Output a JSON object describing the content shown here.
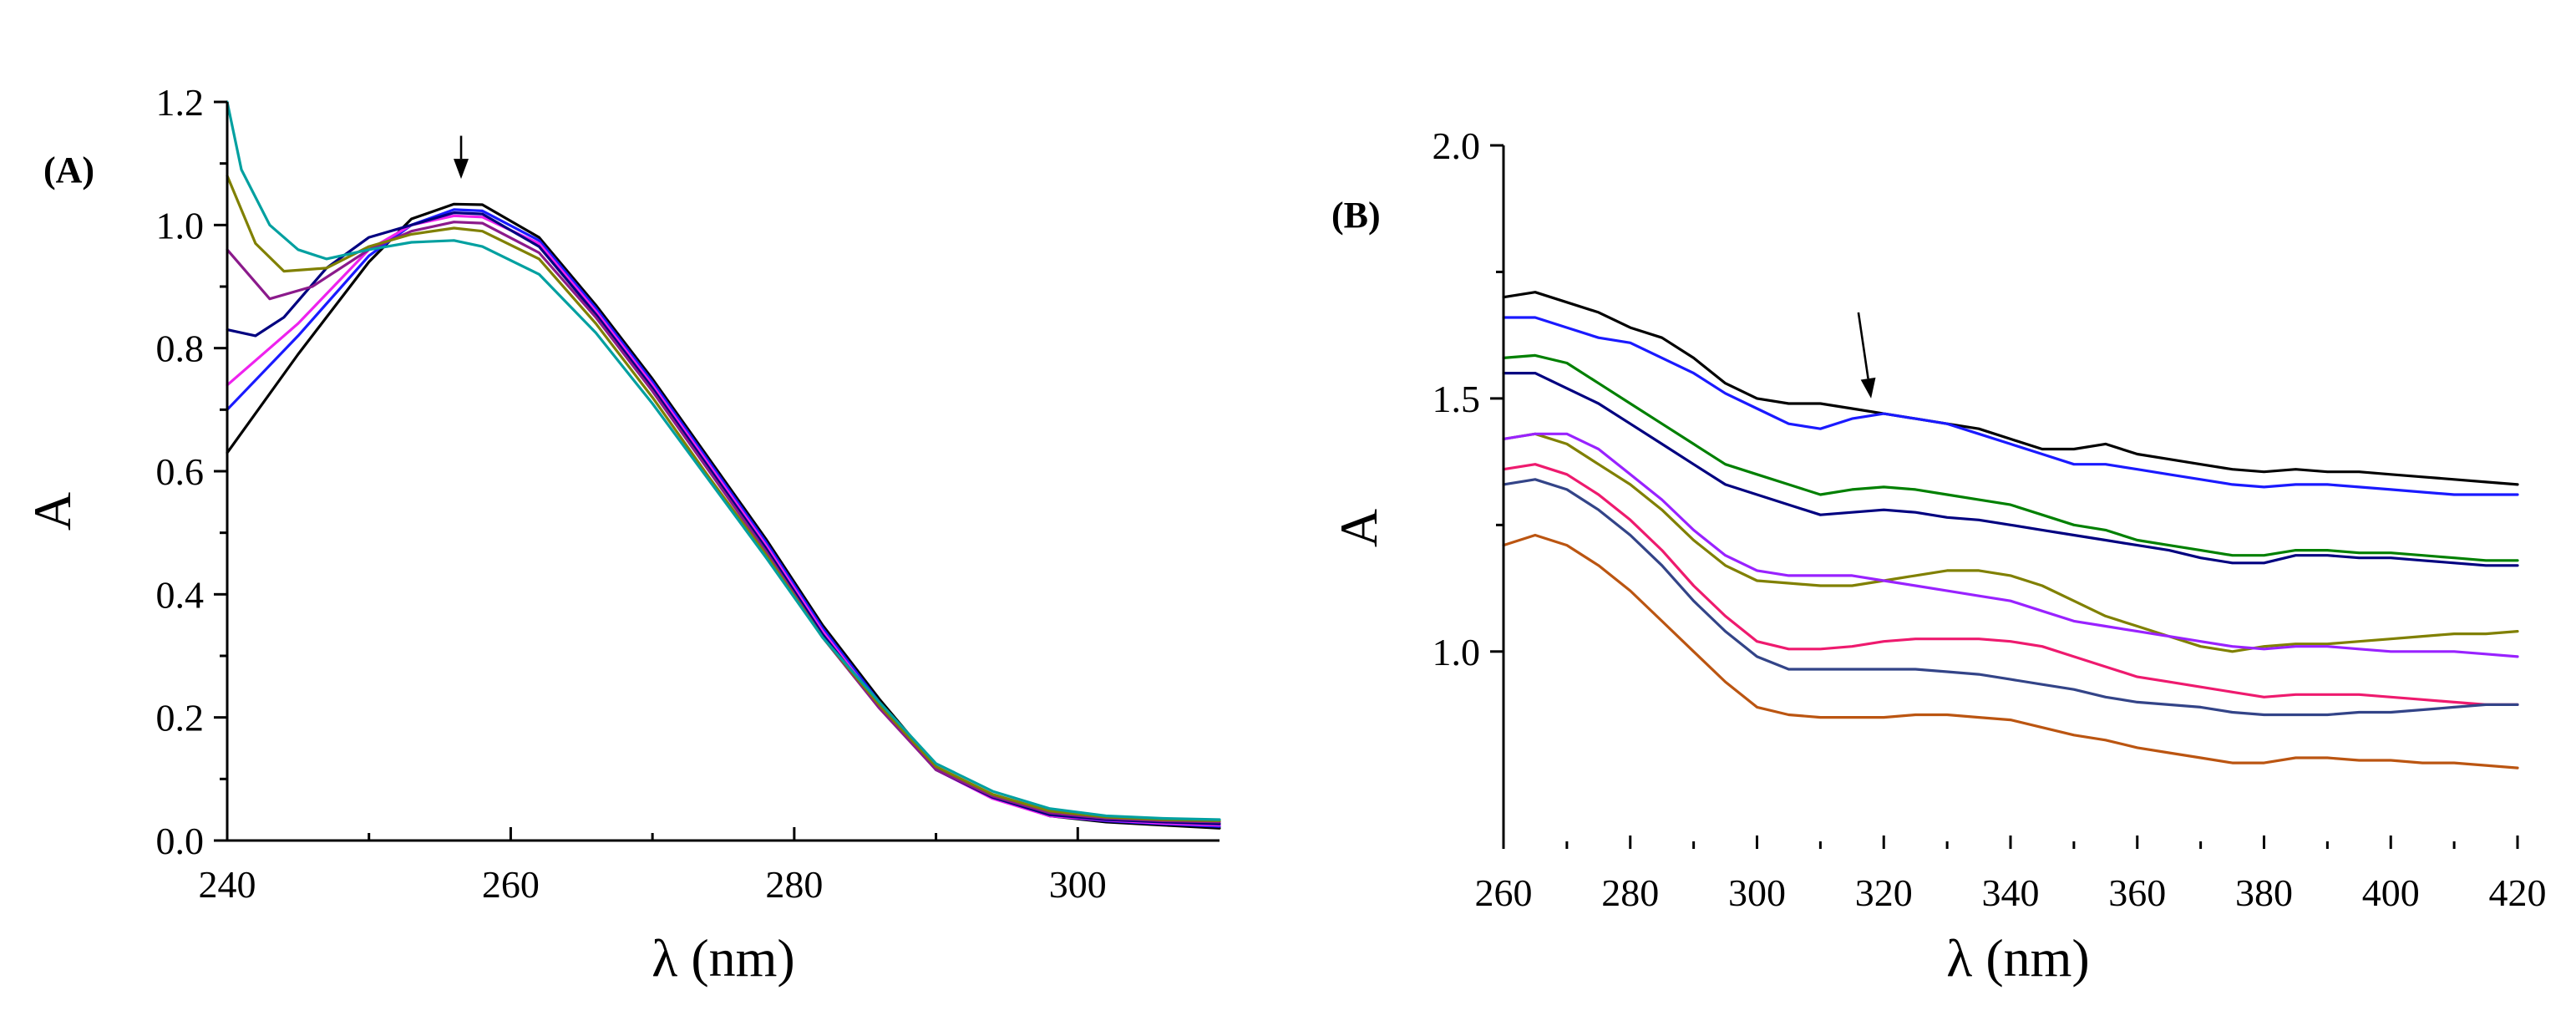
{
  "chart_data": [
    {
      "type": "line",
      "panel": "(A)",
      "xlabel": "λ (nm)",
      "ylabel": "A",
      "xlim": [
        240,
        310
      ],
      "ylim": [
        0,
        1.2
      ],
      "xticks": [
        240,
        260,
        280,
        300
      ],
      "yticks": [
        0,
        0.2,
        0.4,
        0.6,
        0.8,
        1.0,
        1.2
      ],
      "xtick_labels": [
        "240",
        "260",
        "280",
        "300"
      ],
      "ytick_labels": [
        "0.0",
        "0.2",
        "0.4",
        "0.6",
        "0.8",
        "1.0",
        "1.2"
      ],
      "arrow": {
        "x": 256.5,
        "y_from": 1.145,
        "y_to": 1.075
      },
      "series": [
        {
          "name": "s1",
          "color": "#000000",
          "x": [
            240,
            245,
            250,
            253,
            256,
            258,
            262,
            266,
            270,
            274,
            278,
            282,
            286,
            290,
            294,
            298,
            302,
            306,
            310
          ],
          "y": [
            0.63,
            0.79,
            0.94,
            1.01,
            1.034,
            1.033,
            0.98,
            0.87,
            0.75,
            0.62,
            0.49,
            0.35,
            0.23,
            0.12,
            0.07,
            0.04,
            0.03,
            0.025,
            0.02
          ]
        },
        {
          "name": "s2",
          "color": "#1a1aff",
          "x": [
            240,
            245,
            250,
            253,
            256,
            258,
            262,
            266,
            270,
            274,
            278,
            282,
            286,
            290,
            294,
            298,
            302,
            306,
            310
          ],
          "y": [
            0.7,
            0.82,
            0.95,
            1.0,
            1.025,
            1.023,
            0.975,
            0.865,
            0.745,
            0.615,
            0.485,
            0.345,
            0.225,
            0.12,
            0.07,
            0.04,
            0.032,
            0.027,
            0.023
          ]
        },
        {
          "name": "s3",
          "color": "#ee22ee",
          "x": [
            240,
            245,
            250,
            253,
            256,
            258,
            262,
            266,
            270,
            274,
            278,
            282,
            286,
            290,
            294,
            298,
            302,
            306,
            310
          ],
          "y": [
            0.74,
            0.84,
            0.96,
            1.0,
            1.015,
            1.013,
            0.97,
            0.86,
            0.74,
            0.61,
            0.48,
            0.34,
            0.22,
            0.115,
            0.068,
            0.04,
            0.033,
            0.028,
            0.025
          ]
        },
        {
          "name": "s4",
          "color": "#000080",
          "x": [
            240,
            242,
            244,
            247,
            250,
            253,
            256,
            258,
            262,
            266,
            270,
            274,
            278,
            282,
            286,
            290,
            294,
            298,
            302,
            306,
            310
          ],
          "y": [
            0.83,
            0.82,
            0.85,
            0.93,
            0.98,
            1.0,
            1.02,
            1.018,
            0.965,
            0.855,
            0.735,
            0.605,
            0.475,
            0.335,
            0.218,
            0.115,
            0.07,
            0.042,
            0.034,
            0.03,
            0.027
          ]
        },
        {
          "name": "s5",
          "color": "#8b1a8b",
          "x": [
            240,
            243,
            246,
            250,
            253,
            256,
            258,
            262,
            266,
            270,
            274,
            278,
            282,
            286,
            290,
            294,
            298,
            302,
            306,
            310
          ],
          "y": [
            0.96,
            0.88,
            0.9,
            0.96,
            0.99,
            1.005,
            1.003,
            0.955,
            0.85,
            0.73,
            0.6,
            0.47,
            0.33,
            0.215,
            0.115,
            0.072,
            0.045,
            0.036,
            0.032,
            0.03
          ]
        },
        {
          "name": "s6",
          "color": "#808000",
          "x": [
            240,
            242,
            244,
            247,
            250,
            253,
            256,
            258,
            262,
            266,
            270,
            274,
            278,
            282,
            286,
            290,
            294,
            298,
            302,
            306,
            310
          ],
          "y": [
            1.08,
            0.97,
            0.925,
            0.93,
            0.965,
            0.985,
            0.995,
            0.99,
            0.945,
            0.84,
            0.72,
            0.59,
            0.465,
            0.33,
            0.22,
            0.12,
            0.075,
            0.048,
            0.038,
            0.034,
            0.032
          ]
        },
        {
          "name": "s7",
          "color": "#00a0a0",
          "x": [
            240,
            241,
            243,
            245,
            247,
            250,
            253,
            256,
            258,
            262,
            266,
            270,
            274,
            278,
            282,
            286,
            290,
            294,
            298,
            302,
            306,
            310
          ],
          "y": [
            1.2,
            1.09,
            1.0,
            0.96,
            0.945,
            0.96,
            0.972,
            0.975,
            0.965,
            0.92,
            0.825,
            0.71,
            0.585,
            0.46,
            0.33,
            0.225,
            0.125,
            0.08,
            0.052,
            0.04,
            0.036,
            0.034
          ]
        }
      ]
    },
    {
      "type": "line",
      "panel": "(B)",
      "xlabel": "λ (nm)",
      "ylabel": "A",
      "xlim": [
        260,
        420
      ],
      "ylim": [
        0.62,
        2.0
      ],
      "xticks": [
        260,
        280,
        300,
        320,
        340,
        360,
        380,
        400,
        420
      ],
      "yticks": [
        1.0,
        1.5,
        2.0
      ],
      "xtick_labels": [
        "260",
        "280",
        "300",
        "320",
        "340",
        "360",
        "380",
        "400",
        "420"
      ],
      "ytick_labels": [
        "1.0",
        "1.5",
        "2.0"
      ],
      "arrow": {
        "x1": 316,
        "y1": 1.67,
        "x2": 318,
        "y2": 1.5
      },
      "series": [
        {
          "name": "b1",
          "color": "#000000",
          "x": [
            260,
            265,
            270,
            275,
            280,
            285,
            290,
            295,
            300,
            305,
            310,
            315,
            320,
            325,
            330,
            335,
            340,
            345,
            350,
            355,
            360,
            365,
            370,
            375,
            380,
            385,
            390,
            395,
            400,
            405,
            410,
            415,
            420
          ],
          "y": [
            1.7,
            1.71,
            1.69,
            1.67,
            1.64,
            1.62,
            1.58,
            1.53,
            1.5,
            1.49,
            1.49,
            1.48,
            1.47,
            1.46,
            1.45,
            1.44,
            1.42,
            1.4,
            1.4,
            1.41,
            1.39,
            1.38,
            1.37,
            1.36,
            1.355,
            1.36,
            1.355,
            1.355,
            1.35,
            1.345,
            1.34,
            1.335,
            1.33
          ]
        },
        {
          "name": "b2",
          "color": "#1a1aff",
          "x": [
            260,
            265,
            270,
            275,
            280,
            285,
            290,
            295,
            300,
            305,
            310,
            315,
            320,
            325,
            330,
            335,
            340,
            345,
            350,
            355,
            360,
            365,
            370,
            375,
            380,
            385,
            390,
            395,
            400,
            405,
            410,
            415,
            420
          ],
          "y": [
            1.66,
            1.66,
            1.64,
            1.62,
            1.61,
            1.58,
            1.55,
            1.51,
            1.48,
            1.45,
            1.44,
            1.46,
            1.47,
            1.46,
            1.45,
            1.43,
            1.41,
            1.39,
            1.37,
            1.37,
            1.36,
            1.35,
            1.34,
            1.33,
            1.325,
            1.33,
            1.33,
            1.325,
            1.32,
            1.315,
            1.31,
            1.31,
            1.31
          ]
        },
        {
          "name": "b3",
          "color": "#008000",
          "x": [
            260,
            265,
            270,
            275,
            280,
            285,
            290,
            295,
            300,
            305,
            310,
            315,
            320,
            325,
            330,
            335,
            340,
            345,
            350,
            355,
            360,
            365,
            370,
            375,
            380,
            385,
            390,
            395,
            400,
            405,
            410,
            415,
            420
          ],
          "y": [
            1.58,
            1.585,
            1.57,
            1.53,
            1.49,
            1.45,
            1.41,
            1.37,
            1.35,
            1.33,
            1.31,
            1.32,
            1.325,
            1.32,
            1.31,
            1.3,
            1.29,
            1.27,
            1.25,
            1.24,
            1.22,
            1.21,
            1.2,
            1.19,
            1.19,
            1.2,
            1.2,
            1.195,
            1.195,
            1.19,
            1.185,
            1.18,
            1.18
          ]
        },
        {
          "name": "b4",
          "color": "#000080",
          "x": [
            260,
            265,
            270,
            275,
            280,
            285,
            290,
            295,
            300,
            305,
            310,
            315,
            320,
            325,
            330,
            335,
            340,
            345,
            350,
            355,
            360,
            365,
            370,
            375,
            380,
            385,
            390,
            395,
            400,
            405,
            410,
            415,
            420
          ],
          "y": [
            1.55,
            1.55,
            1.52,
            1.49,
            1.45,
            1.41,
            1.37,
            1.33,
            1.31,
            1.29,
            1.27,
            1.275,
            1.28,
            1.275,
            1.265,
            1.26,
            1.25,
            1.24,
            1.23,
            1.22,
            1.21,
            1.2,
            1.185,
            1.175,
            1.175,
            1.19,
            1.19,
            1.185,
            1.185,
            1.18,
            1.175,
            1.17,
            1.17
          ]
        },
        {
          "name": "b5",
          "color": "#808000",
          "x": [
            260,
            265,
            270,
            275,
            280,
            285,
            290,
            295,
            300,
            305,
            310,
            315,
            320,
            325,
            330,
            335,
            340,
            345,
            350,
            355,
            360,
            365,
            370,
            375,
            380,
            385,
            390,
            395,
            400,
            405,
            410,
            415,
            420
          ],
          "y": [
            1.42,
            1.43,
            1.41,
            1.37,
            1.33,
            1.28,
            1.22,
            1.17,
            1.14,
            1.135,
            1.13,
            1.13,
            1.14,
            1.15,
            1.16,
            1.16,
            1.15,
            1.13,
            1.1,
            1.07,
            1.05,
            1.03,
            1.01,
            1.0,
            1.01,
            1.015,
            1.015,
            1.02,
            1.025,
            1.03,
            1.035,
            1.035,
            1.04
          ]
        },
        {
          "name": "b6",
          "color": "#9922ff",
          "x": [
            260,
            265,
            270,
            275,
            280,
            285,
            290,
            295,
            300,
            305,
            310,
            315,
            320,
            325,
            330,
            335,
            340,
            345,
            350,
            355,
            360,
            365,
            370,
            375,
            380,
            385,
            390,
            395,
            400,
            405,
            410,
            415,
            420
          ],
          "y": [
            1.42,
            1.43,
            1.43,
            1.4,
            1.35,
            1.3,
            1.24,
            1.19,
            1.16,
            1.15,
            1.15,
            1.15,
            1.14,
            1.13,
            1.12,
            1.11,
            1.1,
            1.08,
            1.06,
            1.05,
            1.04,
            1.03,
            1.02,
            1.01,
            1.005,
            1.01,
            1.01,
            1.005,
            1.0,
            1.0,
            1.0,
            0.995,
            0.99
          ]
        },
        {
          "name": "b7",
          "color": "#ee1a6e",
          "x": [
            260,
            265,
            270,
            275,
            280,
            285,
            290,
            295,
            300,
            305,
            310,
            315,
            320,
            325,
            330,
            335,
            340,
            345,
            350,
            355,
            360,
            365,
            370,
            375,
            380,
            385,
            390,
            395,
            400,
            405,
            410,
            415,
            420
          ],
          "y": [
            1.36,
            1.37,
            1.35,
            1.31,
            1.26,
            1.2,
            1.13,
            1.07,
            1.02,
            1.005,
            1.005,
            1.01,
            1.02,
            1.025,
            1.025,
            1.025,
            1.02,
            1.01,
            0.99,
            0.97,
            0.95,
            0.94,
            0.93,
            0.92,
            0.91,
            0.915,
            0.915,
            0.915,
            0.91,
            0.905,
            0.9,
            0.895,
            0.895
          ]
        },
        {
          "name": "b8",
          "color": "#334488",
          "x": [
            260,
            265,
            270,
            275,
            280,
            285,
            290,
            295,
            300,
            305,
            310,
            315,
            320,
            325,
            330,
            335,
            340,
            345,
            350,
            355,
            360,
            365,
            370,
            375,
            380,
            385,
            390,
            395,
            400,
            405,
            410,
            415,
            420
          ],
          "y": [
            1.33,
            1.34,
            1.32,
            1.28,
            1.23,
            1.17,
            1.1,
            1.04,
            0.99,
            0.965,
            0.965,
            0.965,
            0.965,
            0.965,
            0.96,
            0.955,
            0.945,
            0.935,
            0.925,
            0.91,
            0.9,
            0.895,
            0.89,
            0.88,
            0.875,
            0.875,
            0.875,
            0.88,
            0.88,
            0.885,
            0.89,
            0.895,
            0.895
          ]
        },
        {
          "name": "b9",
          "color": "#bb5511",
          "x": [
            260,
            265,
            270,
            275,
            280,
            285,
            290,
            295,
            300,
            305,
            310,
            315,
            320,
            325,
            330,
            335,
            340,
            345,
            350,
            355,
            360,
            365,
            370,
            375,
            380,
            385,
            390,
            395,
            400,
            405,
            410,
            415,
            420
          ],
          "y": [
            1.21,
            1.23,
            1.21,
            1.17,
            1.12,
            1.06,
            1.0,
            0.94,
            0.89,
            0.875,
            0.87,
            0.87,
            0.87,
            0.875,
            0.875,
            0.87,
            0.865,
            0.85,
            0.835,
            0.825,
            0.81,
            0.8,
            0.79,
            0.78,
            0.78,
            0.79,
            0.79,
            0.785,
            0.785,
            0.78,
            0.78,
            0.775,
            0.77
          ]
        }
      ]
    }
  ]
}
